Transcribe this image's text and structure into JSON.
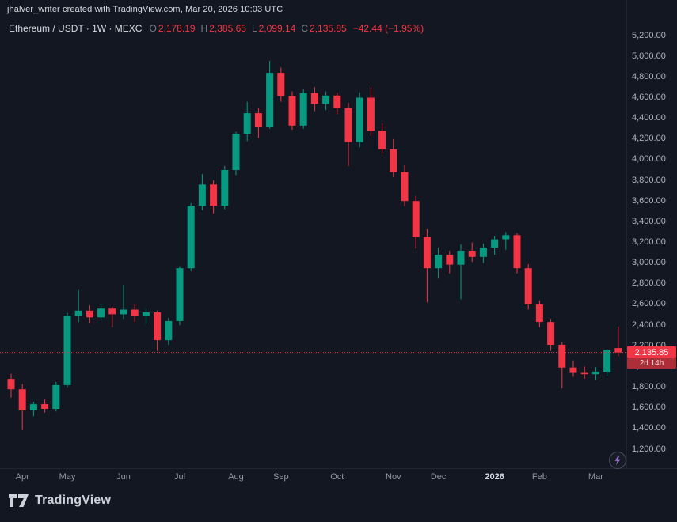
{
  "attribution": "jhalver_writer created with TradingView.com, Mar 20, 2026 10:03 UTC",
  "header": {
    "symbol_title": "Ethereum / USDT · 1W · MEXC",
    "ohlc": [
      {
        "label": "O",
        "value": "2,178.19"
      },
      {
        "label": "H",
        "value": "2,385.65"
      },
      {
        "label": "L",
        "value": "2,099.14"
      },
      {
        "label": "C",
        "value": "2,135.85"
      }
    ],
    "change": "−42.44 (−1.95%)"
  },
  "price_label": {
    "price": "2,135.85",
    "countdown": "2d 14h"
  },
  "footer": {
    "brand": "TradingView"
  },
  "colors": {
    "bg": "#131722",
    "up": "#089981",
    "down": "#f23645",
    "axis_text": "#b2b5be",
    "axis_text_dim": "#9598a1",
    "title_text": "#d7dae2",
    "muted_text": "#787b86",
    "badge_bg": "#f23645",
    "countdown_bg": "#ab2e38",
    "separator": "#1f2430"
  },
  "chart_data": {
    "type": "candlestick",
    "title": "Ethereum / USDT · 1W · MEXC",
    "symbol": "Ethereum / USDT",
    "interval": "1W",
    "exchange": "MEXC",
    "current_price": 2135.85,
    "y_axis": {
      "min": 1150,
      "max": 5250,
      "ticks": [
        {
          "value": 5200,
          "label": "5,200.00"
        },
        {
          "value": 5000,
          "label": "5,000.00"
        },
        {
          "value": 4800,
          "label": "4,800.00"
        },
        {
          "value": 4600,
          "label": "4,600.00"
        },
        {
          "value": 4400,
          "label": "4,400.00"
        },
        {
          "value": 4200,
          "label": "4,200.00"
        },
        {
          "value": 4000,
          "label": "4,000.00"
        },
        {
          "value": 3800,
          "label": "3,800.00"
        },
        {
          "value": 3600,
          "label": "3,600.00"
        },
        {
          "value": 3400,
          "label": "3,400.00"
        },
        {
          "value": 3200,
          "label": "3,200.00"
        },
        {
          "value": 3000,
          "label": "3,000.00"
        },
        {
          "value": 2800,
          "label": "2,800.00"
        },
        {
          "value": 2600,
          "label": "2,600.00"
        },
        {
          "value": 2400,
          "label": "2,400.00"
        },
        {
          "value": 2200,
          "label": "2,200.00"
        },
        {
          "value": 2000,
          "label": "2,000.00"
        },
        {
          "value": 1800,
          "label": "1,800.00"
        },
        {
          "value": 1600,
          "label": "1,600.00"
        },
        {
          "value": 1400,
          "label": "1,400.00"
        },
        {
          "value": 1200,
          "label": "1,200.00"
        }
      ]
    },
    "x_axis": {
      "months": [
        {
          "label": "Apr",
          "index": 1
        },
        {
          "label": "May",
          "index": 5
        },
        {
          "label": "Jun",
          "index": 10
        },
        {
          "label": "Jul",
          "index": 15
        },
        {
          "label": "Aug",
          "index": 20
        },
        {
          "label": "Sep",
          "index": 24
        },
        {
          "label": "Oct",
          "index": 29
        },
        {
          "label": "Nov",
          "index": 34
        },
        {
          "label": "Dec",
          "index": 38
        },
        {
          "label": "2026",
          "index": 43,
          "emphasis": true
        },
        {
          "label": "Feb",
          "index": 47
        },
        {
          "label": "Mar",
          "index": 52
        }
      ]
    },
    "candles_ohlc": [
      [
        1880,
        1930,
        1700,
        1780
      ],
      [
        1780,
        1830,
        1385,
        1575
      ],
      [
        1575,
        1660,
        1520,
        1635
      ],
      [
        1635,
        1680,
        1555,
        1590
      ],
      [
        1590,
        1850,
        1565,
        1820
      ],
      [
        1820,
        2520,
        1800,
        2490
      ],
      [
        2490,
        2740,
        2430,
        2540
      ],
      [
        2540,
        2590,
        2420,
        2475
      ],
      [
        2475,
        2600,
        2440,
        2560
      ],
      [
        2560,
        2580,
        2380,
        2505
      ],
      [
        2505,
        2790,
        2460,
        2550
      ],
      [
        2550,
        2600,
        2430,
        2485
      ],
      [
        2485,
        2560,
        2410,
        2525
      ],
      [
        2525,
        2540,
        2150,
        2255
      ],
      [
        2255,
        2470,
        2210,
        2440
      ],
      [
        2440,
        2970,
        2400,
        2950
      ],
      [
        2950,
        3580,
        2920,
        3555
      ],
      [
        3555,
        3860,
        3510,
        3760
      ],
      [
        3760,
        3800,
        3480,
        3555
      ],
      [
        3555,
        3940,
        3520,
        3900
      ],
      [
        3900,
        4270,
        3850,
        4250
      ],
      [
        4250,
        4560,
        4180,
        4450
      ],
      [
        4450,
        4500,
        4210,
        4320
      ],
      [
        4320,
        4955,
        4300,
        4840
      ],
      [
        4840,
        4890,
        4560,
        4615
      ],
      [
        4615,
        4660,
        4290,
        4330
      ],
      [
        4330,
        4680,
        4300,
        4645
      ],
      [
        4645,
        4700,
        4470,
        4540
      ],
      [
        4540,
        4660,
        4480,
        4620
      ],
      [
        4620,
        4650,
        4440,
        4500
      ],
      [
        4500,
        4550,
        3940,
        4170
      ],
      [
        4170,
        4650,
        4120,
        4600
      ],
      [
        4600,
        4700,
        4230,
        4280
      ],
      [
        4280,
        4350,
        4060,
        4100
      ],
      [
        4100,
        4200,
        3830,
        3880
      ],
      [
        3880,
        3950,
        3550,
        3600
      ],
      [
        3600,
        3650,
        3140,
        3250
      ],
      [
        3250,
        3330,
        2620,
        2950
      ],
      [
        2950,
        3150,
        2850,
        3080
      ],
      [
        3080,
        3120,
        2900,
        2985
      ],
      [
        2985,
        3180,
        2650,
        3120
      ],
      [
        3120,
        3200,
        3010,
        3060
      ],
      [
        3060,
        3190,
        3000,
        3150
      ],
      [
        3150,
        3260,
        3080,
        3230
      ],
      [
        3230,
        3300,
        3130,
        3270
      ],
      [
        3270,
        3290,
        2900,
        2950
      ],
      [
        2950,
        2990,
        2550,
        2600
      ],
      [
        2600,
        2640,
        2380,
        2430
      ],
      [
        2430,
        2460,
        2150,
        2210
      ],
      [
        2210,
        2240,
        1790,
        1990
      ],
      [
        1990,
        2060,
        1900,
        1945
      ],
      [
        1945,
        2000,
        1880,
        1925
      ],
      [
        1925,
        1995,
        1870,
        1950
      ],
      [
        1950,
        2170,
        1905,
        2160
      ],
      [
        2178.19,
        2385.65,
        2099.14,
        2135.85
      ]
    ]
  }
}
